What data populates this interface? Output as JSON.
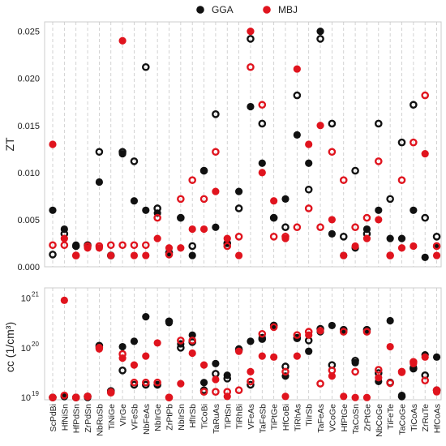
{
  "chart_data": [
    {
      "type": "scatter",
      "ylabel": "ZT",
      "ylim": [
        0,
        0.026
      ],
      "yticks": [
        "0.000",
        "0.005",
        "0.010",
        "0.015",
        "0.020",
        "0.025"
      ],
      "grid": "vertical dashed",
      "legend": {
        "placement": "top-center",
        "entries": [
          {
            "name": "GGA",
            "color": "#111111"
          },
          {
            "name": "MBJ",
            "color": "#e0141e"
          }
        ]
      },
      "categories": [
        "ScPdBi",
        "HfNiSn",
        "HfPdSn",
        "ZrPdSn",
        "NbRuSb",
        "TiNiGe",
        "VIrGe",
        "VFeSb",
        "NbFeAs",
        "NbIrGe",
        "ZrPtPb",
        "NbIrSn",
        "HfIrSb",
        "TiCoBi",
        "TaRuAs",
        "TiPtSn",
        "TiRhBi",
        "VFeAs",
        "TaFeSb",
        "TiPtGe",
        "HfCoBi",
        "TiRhAs",
        "TiIrSb",
        "TaFeAs",
        "VCoGe",
        "HfPtGe",
        "TaCoSn",
        "ZrPtGe",
        "NbCoGe",
        "TiFeTe",
        "TaCoGe",
        "TiCoAs",
        "ZrRuTe",
        "HfCoAs"
      ],
      "series": [
        {
          "name": "GGA",
          "color": "#111111",
          "filled": [
            0.006,
            0.004,
            0.0023,
            0.0022,
            0.009,
            0.0012,
            0.012,
            0.007,
            0.006,
            0.0057,
            0.0015,
            0.0052,
            0.0012,
            0.0102,
            0.0042,
            0.0025,
            0.008,
            0.017,
            0.011,
            0.0052,
            0.0072,
            0.014,
            0.011,
            0.025,
            0.0035,
            0.0012,
            0.002,
            0.004,
            0.006,
            0.003,
            0.003,
            0.006,
            0.001,
            0.0022
          ],
          "open": [
            0.0013,
            0.0035,
            0.0022,
            0.0023,
            0.0122,
            0.0012,
            0.0122,
            0.0112,
            0.0212,
            0.0062,
            0.0015,
            0.0052,
            0.0022,
            0.0102,
            0.0162,
            0.0025,
            0.0062,
            0.0242,
            0.0152,
            0.0052,
            0.0042,
            0.0182,
            0.0082,
            0.0242,
            0.0152,
            0.0032,
            0.0102,
            0.0035,
            0.0152,
            0.0072,
            0.0132,
            0.0172,
            0.0052,
            0.0032
          ]
        },
        {
          "name": "MBJ",
          "color": "#e0141e",
          "filled": [
            0.013,
            0.003,
            0.0012,
            0.002,
            0.002,
            0.0012,
            0.024,
            0.0012,
            0.0012,
            0.003,
            0.002,
            0.002,
            0.004,
            0.004,
            0.008,
            0.003,
            0.0012,
            0.025,
            0.01,
            0.007,
            0.003,
            0.021,
            0.013,
            0.015,
            0.005,
            0.0012,
            0.0022,
            0.003,
            0.005,
            0.0012,
            0.002,
            0.0022,
            0.012,
            0.0012
          ],
          "open": [
            0.0023,
            0.0023,
            0.0012,
            0.0022,
            0.0022,
            0.0023,
            0.0023,
            0.0023,
            0.0023,
            0.0052,
            0.0013,
            0.0072,
            0.0092,
            0.0072,
            0.0122,
            0.0022,
            0.0032,
            0.0212,
            0.0172,
            0.0032,
            0.0032,
            0.0042,
            0.0062,
            0.0042,
            0.0122,
            0.0092,
            0.0042,
            0.0052,
            0.0112,
            0.0012,
            0.0092,
            0.0132,
            0.0182,
            0.0022
          ]
        }
      ]
    },
    {
      "type": "scatter",
      "ylabel": "cc (1/cm³)",
      "scale": "log",
      "ylim": [
        9e+18,
        1.6e+21
      ],
      "yticks": [
        {
          "base": "10",
          "exp": "19",
          "value": 1e+19
        },
        {
          "base": "10",
          "exp": "20",
          "value": 1e+20
        },
        {
          "base": "10",
          "exp": "21",
          "value": 1e+21
        }
      ],
      "grid": "vertical dashed",
      "categories": [
        "ScPdBi",
        "HfNiSn",
        "HfPdSn",
        "ZrPdSn",
        "NbRuSb",
        "TiNiGe",
        "VIrGe",
        "VFeSb",
        "NbFeAs",
        "NbIrGe",
        "ZrPtPb",
        "NbIrSn",
        "HfIrSb",
        "TiCoBi",
        "TaRuAs",
        "TiPtSn",
        "TiRhBi",
        "VFeAs",
        "TaFeSb",
        "TiPtGe",
        "HfCoBi",
        "TiRhAs",
        "TiIrSb",
        "TaFeAs",
        "VCoGe",
        "HfPtGe",
        "TaCoSn",
        "ZrPtGe",
        "NbCoGe",
        "TiFeTe",
        "TaCoGe",
        "TiCoAs",
        "ZrRuTe",
        "HfCoAs"
      ],
      "series": [
        {
          "name": "GGA",
          "color": "#111111",
          "filled": [
            1e+19,
            1.05e+19,
            1e+19,
            1e+19,
            1.05e+20,
            1.3e+19,
            1.05e+20,
            1.35e+20,
            4.2e+20,
            1.8e+19,
            3.2e+20,
            1.2e+20,
            1.8e+20,
            2e+19,
            4.8e+19,
            2.8e+19,
            9.5e+19,
            1.35e+20,
            1.6e+20,
            2.8e+20,
            2.7e+19,
            1.6e+20,
            8.5e+19,
            2.1e+20,
            2.8e+20,
            2.2e+20,
            5e+19,
            2.2e+20,
            2.1e+19,
            3.5e+20,
            1.1e+19,
            4e+19,
            7.2e+19,
            6.5e+19
          ],
          "open": [
            1e+19,
            1.05e+19,
            1e+19,
            1.05e+19,
            1.1e+20,
            1.35e+19,
            3.5e+19,
            1.8e+19,
            1.8e+19,
            1.8e+19,
            3.4e+20,
            1e+20,
            1.3e+20,
            1.4e+19,
            3e+19,
            2.4e+19,
            9e+19,
            1.8e+19,
            1.5e+20,
            2.8e+20,
            4.2e+19,
            1.55e+20,
            1.4e+20,
            2.4e+20,
            4.5e+19,
            2.3e+20,
            5.5e+19,
            2.3e+20,
            3.1e+19,
            2e+19,
            1.05e+19,
            3.8e+19,
            2.8e+19,
            1.4e+19
          ]
        },
        {
          "name": "MBJ",
          "color": "#e0141e",
          "filled": [
            1e+19,
            9e+20,
            1e+19,
            1.05e+19,
            9.5e+19,
            1.3e+19,
            6.2e+19,
            4.5e+19,
            6.8e+19,
            1.25e+20,
            1e+19,
            1.9e+19,
            7.8e+19,
            4.5e+19,
            2.3e+19,
            1.05e+19,
            8.5e+19,
            3.3e+19,
            6.8e+19,
            6.5e+19,
            1.05e+19,
            6.8e+19,
            1.8e+20,
            2.2e+20,
            2.7e+19,
            1.05e+19,
            1e+19,
            1e+19,
            2.5e+19,
            1.05e+20,
            3.2e+19,
            4.8e+19,
            6.5e+19,
            1.3e+19
          ],
          "open": [
            1e+19,
            1.1e+19,
            1e+19,
            1.05e+19,
            1e+20,
            1.25e+19,
            7.5e+19,
            2e+19,
            2e+19,
            2e+19,
            1e+19,
            1.4e+20,
            1.4e+20,
            1.3e+19,
            1.3e+19,
            1.3e+19,
            1.4e+19,
            2.1e+19,
            1.9e+20,
            2.6e+20,
            3.3e+19,
            1.8e+20,
            2.1e+20,
            1.9e+19,
            3.5e+19,
            2.1e+20,
            3.3e+19,
            2.1e+20,
            3.6e+19,
            1.95e+19,
            3.3e+19,
            5.2e+19,
            2.2e+19,
            1.4e+19
          ]
        }
      ]
    }
  ]
}
